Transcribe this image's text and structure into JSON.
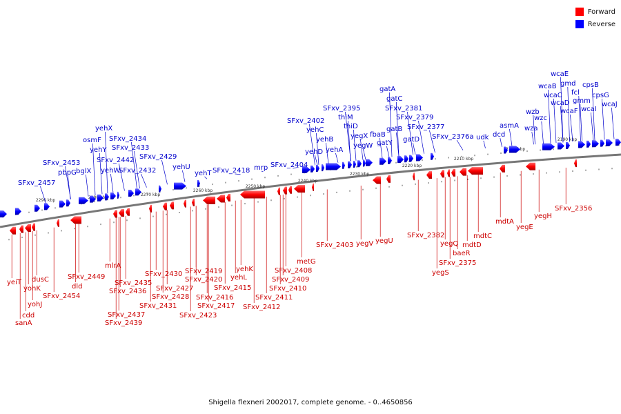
{
  "caption": "Shigella flexneri 2002017, complete genome. - 0..4650856",
  "legend": [
    {
      "label": "Forward",
      "color": "#ff0000"
    },
    {
      "label": "Reverse",
      "color": "#0000ff"
    }
  ],
  "ticks": [
    "2290 kbp",
    "2280 kbp",
    "2270 kbp",
    "2260 kbp",
    "2250 kbp",
    "2240 kbp",
    "2230 kbp",
    "2220 kbp",
    "2210 kbp",
    "2200 kbp",
    "2190 kbp"
  ],
  "reverse_labels": [
    "SFxv_2457",
    "SFxv_2453",
    "pbpG",
    "bglX",
    "yehX",
    "osmF",
    "yehY",
    "SFxv_2442",
    "yehW",
    "SFxv_2434",
    "SFxv_2433",
    "SFxv_2432",
    "SFxv_2429",
    "yehU",
    "yehT",
    "SFxv_2418",
    "mrp",
    "SFxv_2404",
    "SFxv_2402",
    "yehC",
    "yehD",
    "yehB",
    "yehA",
    "SFxv_2395",
    "thiM",
    "thiD",
    "yegX",
    "yegW",
    "fbaB",
    "gatY",
    "gatA",
    "gatC",
    "SFxv_2381",
    "gatB",
    "SFxv_2379",
    "gatD",
    "SFxv_2377",
    "SFxv_2376a",
    "udk",
    "dcd",
    "asmA",
    "wza",
    "wzb",
    "wzc",
    "wcaB",
    "wcaE",
    "wcaC",
    "gmd",
    "wcaD",
    "wcaF",
    "fcl",
    "gmm",
    "wcaI",
    "cpsB",
    "cpsG",
    "wcaJ"
  ],
  "forward_labels": [
    "yeiT",
    "cdd",
    "sanA",
    "yohK",
    "yohJ",
    "dusC",
    "SFxv_2454",
    "SFxv_2449",
    "dld",
    "mlrA",
    "SFxv_2435",
    "SFxv_2436",
    "SFxv_2437",
    "SFxv_2439",
    "SFxv_2430",
    "SFxv_2431",
    "SFxv_2427",
    "SFxv_2428",
    "SFxv_2419",
    "SFxv_2420",
    "SFxv_2423",
    "SFxv_2417",
    "SFxv_2416",
    "SFxv_2415",
    "yehL",
    "yehK",
    "SFxv_2412",
    "SFxv_2411",
    "SFxv_2410",
    "SFxv_2409",
    "SFxv_2408",
    "metG",
    "SFxv_2403",
    "yegV",
    "yegU",
    "SFxv_2382",
    "yegS",
    "yegQ",
    "SFxv_2375",
    "baeR",
    "mdtD",
    "mdtC",
    "mdtA",
    "yegE",
    "yegH",
    "SFxv_2356"
  ]
}
